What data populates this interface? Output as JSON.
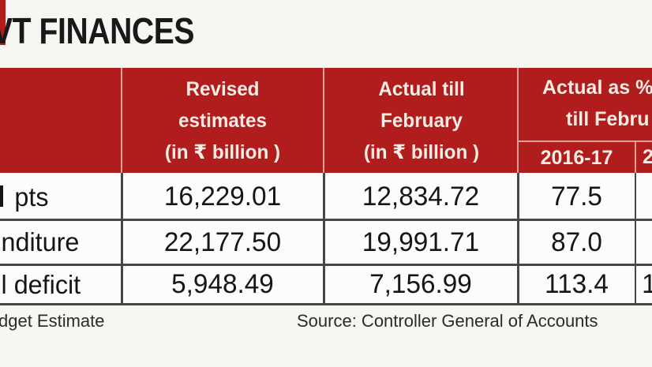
{
  "title": "VT FINANCES",
  "table": {
    "header": {
      "revised": "Revised\nestimates\n(in ₹ billion )",
      "actual": "Actual till\nFebruary\n(in ₹ billion )",
      "group_line1": "Actual as %",
      "group_line2": "till Febru",
      "subcol_year1": "2016-17",
      "subcol_year2_partial": "2"
    },
    "rows": [
      {
        "label": "pts",
        "revised": "16,229.01",
        "actual": "12,834.72",
        "pct_year1": "77.5",
        "pct_year2_partial": ""
      },
      {
        "label": "nditure",
        "revised": "22,177.50",
        "actual": "19,991.71",
        "pct_year1": "87.0",
        "pct_year2_partial": ""
      },
      {
        "label": "l deficit",
        "revised": "5,948.49",
        "actual": "7,156.99",
        "pct_year1": "113.4",
        "pct_year2_partial": "1"
      }
    ]
  },
  "footer": {
    "note": "dget Estimate",
    "source": "Source: Controller General of Accounts"
  },
  "colors": {
    "header_red": "#b11d1d",
    "header_text": "#f7ece4",
    "divider_light_pink": "#dfa09a",
    "divider_dark_gray": "#474747",
    "text_dark": "#161616",
    "page_background": "#f7f6f3"
  },
  "chart_data": {
    "type": "table",
    "title": "VT FINANCES",
    "columns": [
      "(row label, cropped)",
      "Revised estimates (in ₹ billion)",
      "Actual till February (in ₹ billion)",
      "Actual as % till Febru — 2016-17",
      "(next column, cropped)"
    ],
    "rows": [
      {
        "label": "pts",
        "revised_estimates": 16229.01,
        "actual_till_february": 12834.72,
        "actual_pct_2016_17": 77.5
      },
      {
        "label": "nditure",
        "revised_estimates": 22177.5,
        "actual_till_february": 19991.71,
        "actual_pct_2016_17": 87.0
      },
      {
        "label": "l deficit",
        "revised_estimates": 5948.49,
        "actual_till_february": 7156.99,
        "actual_pct_2016_17": 113.4
      }
    ],
    "source": "Source: Controller General of Accounts"
  }
}
